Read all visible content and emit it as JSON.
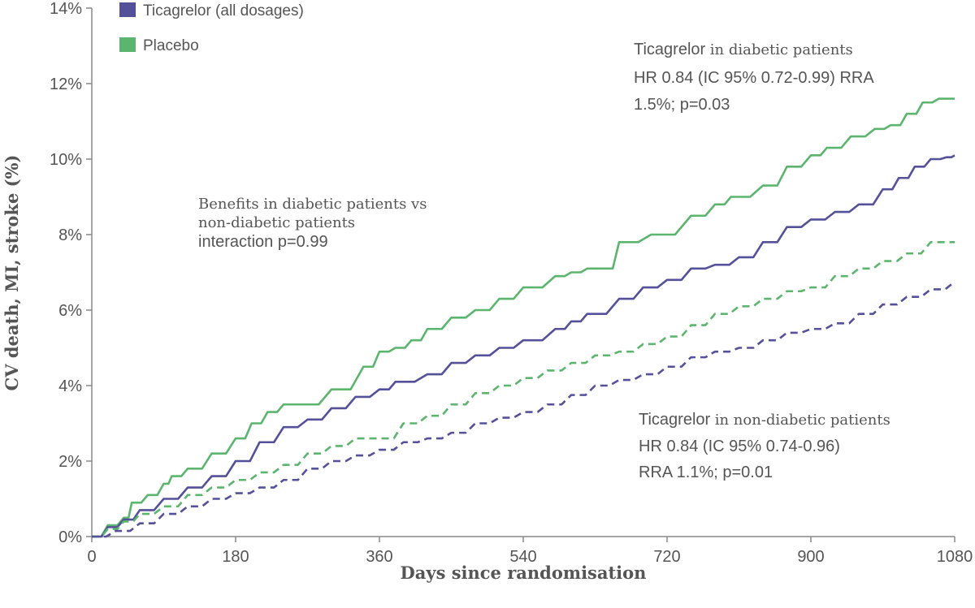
{
  "chart_data": {
    "type": "line",
    "xlabel": "Days since randomisation",
    "ylabel": "CV death, MI, stroke (%)",
    "xlim": [
      0,
      1080
    ],
    "ylim": [
      0,
      14
    ],
    "x_ticks": [
      "0",
      "180",
      "360",
      "540",
      "720",
      "900",
      "1080"
    ],
    "y_ticks": [
      "0%",
      "2%",
      "4%",
      "6%",
      "8%",
      "10%",
      "12%",
      "14%"
    ],
    "grid": false,
    "legend": [
      {
        "label": "Ticagrelor (all dosages)",
        "color": "#54509a"
      },
      {
        "label": "Placebo",
        "color": "#5cb56e"
      }
    ],
    "series": [
      {
        "name": "Placebo",
        "group": "diabetic patients",
        "style": "solid",
        "color": "#5cb56e",
        "x": [
          0,
          20,
          40,
          50,
          70,
          90,
          100,
          120,
          150,
          180,
          200,
          220,
          240,
          260,
          300,
          340,
          360,
          380,
          400,
          420,
          450,
          480,
          510,
          540,
          580,
          600,
          620,
          640,
          660,
          700,
          750,
          780,
          800,
          840,
          870,
          900,
          920,
          950,
          980,
          1000,
          1020,
          1040,
          1060,
          1080
        ],
        "y": [
          0,
          0.3,
          0.5,
          0.9,
          1.1,
          1.4,
          1.6,
          1.8,
          2.2,
          2.6,
          3.0,
          3.3,
          3.5,
          3.5,
          3.9,
          4.5,
          4.9,
          5.0,
          5.2,
          5.5,
          5.8,
          6.0,
          6.3,
          6.6,
          6.9,
          7.0,
          7.1,
          7.1,
          7.8,
          8.0,
          8.5,
          8.8,
          9.0,
          9.3,
          9.8,
          10.1,
          10.3,
          10.6,
          10.8,
          10.9,
          11.2,
          11.5,
          11.6,
          11.6
        ]
      },
      {
        "name": "Ticagrelor (all dosages)",
        "group": "diabetic patients",
        "style": "solid",
        "color": "#54509a",
        "x": [
          0,
          20,
          40,
          60,
          90,
          120,
          150,
          180,
          210,
          240,
          270,
          300,
          330,
          360,
          380,
          420,
          450,
          480,
          510,
          540,
          580,
          600,
          620,
          660,
          690,
          720,
          750,
          780,
          810,
          840,
          870,
          900,
          930,
          960,
          990,
          1010,
          1030,
          1050,
          1070,
          1080
        ],
        "y": [
          0,
          0.25,
          0.45,
          0.7,
          1.0,
          1.3,
          1.6,
          2.0,
          2.5,
          2.9,
          3.1,
          3.4,
          3.7,
          3.9,
          4.1,
          4.3,
          4.6,
          4.8,
          5.0,
          5.2,
          5.5,
          5.7,
          5.9,
          6.3,
          6.6,
          6.8,
          7.1,
          7.2,
          7.4,
          7.8,
          8.2,
          8.4,
          8.6,
          8.8,
          9.2,
          9.5,
          9.8,
          10.0,
          10.05,
          10.1
        ]
      },
      {
        "name": "Placebo",
        "group": "non-diabetic patients",
        "style": "dashed",
        "color": "#5cb56e",
        "x": [
          0,
          20,
          40,
          60,
          90,
          120,
          150,
          180,
          210,
          240,
          270,
          300,
          330,
          360,
          390,
          420,
          450,
          480,
          510,
          540,
          570,
          600,
          630,
          660,
          690,
          720,
          750,
          780,
          810,
          840,
          870,
          900,
          930,
          960,
          990,
          1020,
          1050,
          1080
        ],
        "y": [
          0,
          0.2,
          0.4,
          0.6,
          0.8,
          1.1,
          1.3,
          1.5,
          1.7,
          1.9,
          2.2,
          2.4,
          2.6,
          2.6,
          3.0,
          3.2,
          3.5,
          3.8,
          4.0,
          4.2,
          4.4,
          4.6,
          4.8,
          4.9,
          5.1,
          5.3,
          5.6,
          5.9,
          6.1,
          6.3,
          6.5,
          6.6,
          6.9,
          7.1,
          7.3,
          7.5,
          7.8,
          7.8
        ]
      },
      {
        "name": "Ticagrelor (all dosages)",
        "group": "non-diabetic patients",
        "style": "dashed",
        "color": "#54509a",
        "x": [
          0,
          30,
          60,
          90,
          120,
          150,
          180,
          210,
          240,
          270,
          300,
          330,
          360,
          390,
          420,
          450,
          480,
          510,
          540,
          570,
          600,
          630,
          660,
          690,
          720,
          750,
          780,
          810,
          840,
          870,
          900,
          930,
          960,
          990,
          1020,
          1050,
          1080
        ],
        "y": [
          0,
          0.15,
          0.35,
          0.6,
          0.8,
          1.0,
          1.15,
          1.3,
          1.5,
          1.8,
          2.0,
          2.15,
          2.3,
          2.5,
          2.6,
          2.75,
          3.0,
          3.15,
          3.3,
          3.5,
          3.75,
          4.0,
          4.15,
          4.3,
          4.5,
          4.75,
          4.9,
          5.0,
          5.2,
          5.4,
          5.5,
          5.65,
          5.9,
          6.15,
          6.35,
          6.55,
          6.75
        ]
      }
    ]
  },
  "annotations": {
    "diabetic_prefix": "Ticagrelor ",
    "diabetic_in": "in ",
    "diabetic_group": "diabetic patients",
    "diabetic_line2": "HR 0.84 (IC 95% 0.72-0.99) RRA",
    "diabetic_line3": "1.5%; p=0.03",
    "nondiabetic_prefix": "Ticagrelor ",
    "nondiabetic_group": "in non-diabetic patients",
    "nondiabetic_line2": "HR 0.84 (IC 95% 0.74-0.96)",
    "nondiabetic_line3": "RRA 1.1%; p=0.01",
    "benefit_line1": "Benefits in diabetic patients vs",
    "benefit_line2": "non-diabetic patients",
    "benefit_line3": "interaction p=0.99"
  },
  "colors": {
    "axis": "#888888",
    "text": "#555555",
    "highlight": "#e3343c"
  }
}
